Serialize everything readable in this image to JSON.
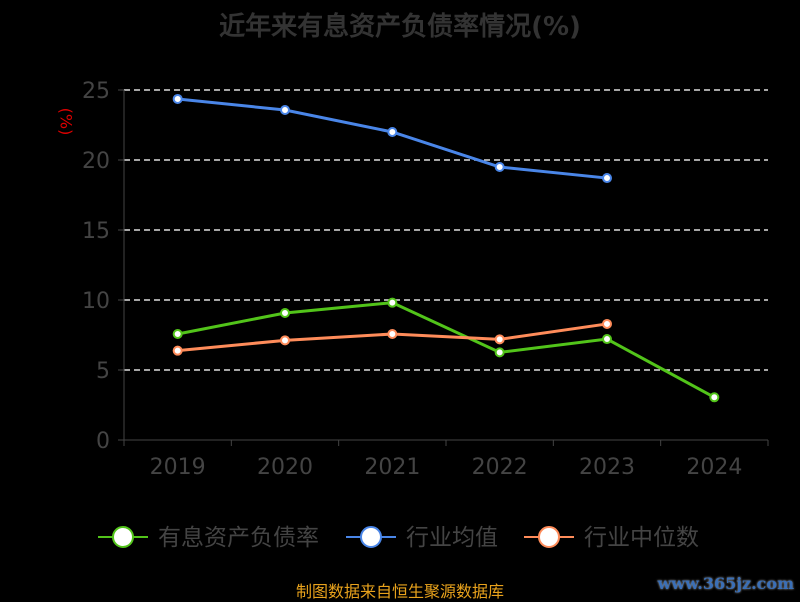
{
  "chart_data": {
    "type": "line",
    "title": "近年来有息资产负债率情况(%)",
    "ylabel": "(%)",
    "categories": [
      "2019",
      "2020",
      "2021",
      "2022",
      "2023",
      "2024"
    ],
    "ylim": [
      0,
      25
    ],
    "yticks": [
      0,
      5,
      10,
      15,
      20,
      25
    ],
    "grid": true,
    "legend": "bottom",
    "series": [
      {
        "name": "有息资产负债率",
        "color": "#52c41a",
        "values": [
          7.57,
          9.07,
          9.81,
          6.26,
          7.21,
          3.05
        ]
      },
      {
        "name": "行业均值",
        "color": "#4a86e8",
        "values": [
          24.36,
          23.57,
          22.0,
          19.5,
          18.71,
          null
        ]
      },
      {
        "name": "行业中位数",
        "color": "#ff8c5a",
        "values": [
          6.38,
          7.12,
          7.57,
          7.19,
          8.29,
          null
        ]
      }
    ]
  },
  "footer": {
    "source": "制图数据来自恒生聚源数据库",
    "watermark": "www.365jz.com"
  }
}
